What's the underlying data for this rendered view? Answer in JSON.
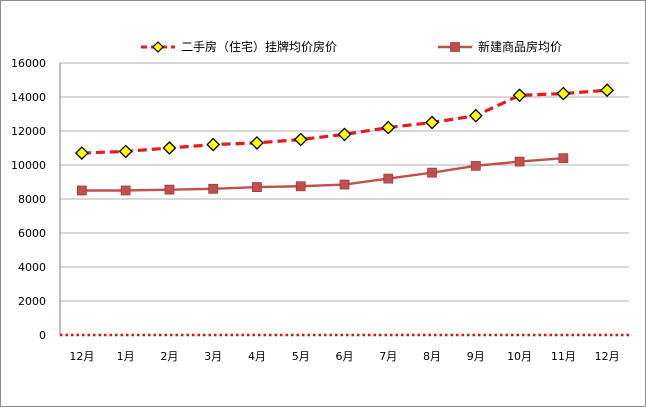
{
  "chart_data": {
    "type": "line",
    "categories": [
      "12月",
      "1月",
      "2月",
      "3月",
      "4月",
      "5月",
      "6月",
      "7月",
      "8月",
      "9月",
      "10月",
      "11月",
      "12月"
    ],
    "series": [
      {
        "name": "二手房（住宅）挂牌均价房价",
        "color": "#e8191b",
        "marker_color": "#ffff00",
        "marker": "diamond",
        "dashed": true,
        "values": [
          10700,
          10800,
          11000,
          11200,
          11300,
          11500,
          11800,
          12200,
          12500,
          12900,
          14100,
          14200,
          14400
        ]
      },
      {
        "name": "新建商品房均价",
        "color": "#c0504d",
        "marker_color": "#c0504d",
        "marker": "square",
        "dashed": false,
        "values": [
          8500,
          8500,
          8550,
          8600,
          8700,
          8750,
          8850,
          9200,
          9550,
          9950,
          10200,
          10400,
          null
        ]
      }
    ],
    "yticks": [
      0,
      2000,
      4000,
      6000,
      8000,
      10000,
      12000,
      14000,
      16000
    ],
    "ylim": [
      0,
      16000
    ],
    "grid": true,
    "legend_position": "top"
  }
}
